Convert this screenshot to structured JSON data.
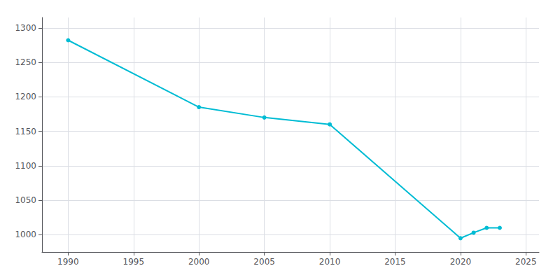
{
  "chart_data": {
    "type": "line",
    "x": [
      1990,
      2000,
      2005,
      2010,
      2020,
      2021,
      2022,
      2023
    ],
    "values": [
      1282,
      1185,
      1170,
      1160,
      995,
      1003,
      1010,
      1010
    ],
    "color": "#00BCD4",
    "marker": "circle",
    "xlim": [
      1988,
      2026
    ],
    "ylim": [
      975,
      1315
    ],
    "xticks": [
      1990,
      1995,
      2000,
      2005,
      2010,
      2015,
      2020,
      2025
    ],
    "yticks": [
      1000,
      1050,
      1100,
      1150,
      1200,
      1250,
      1300
    ],
    "grid": true
  }
}
